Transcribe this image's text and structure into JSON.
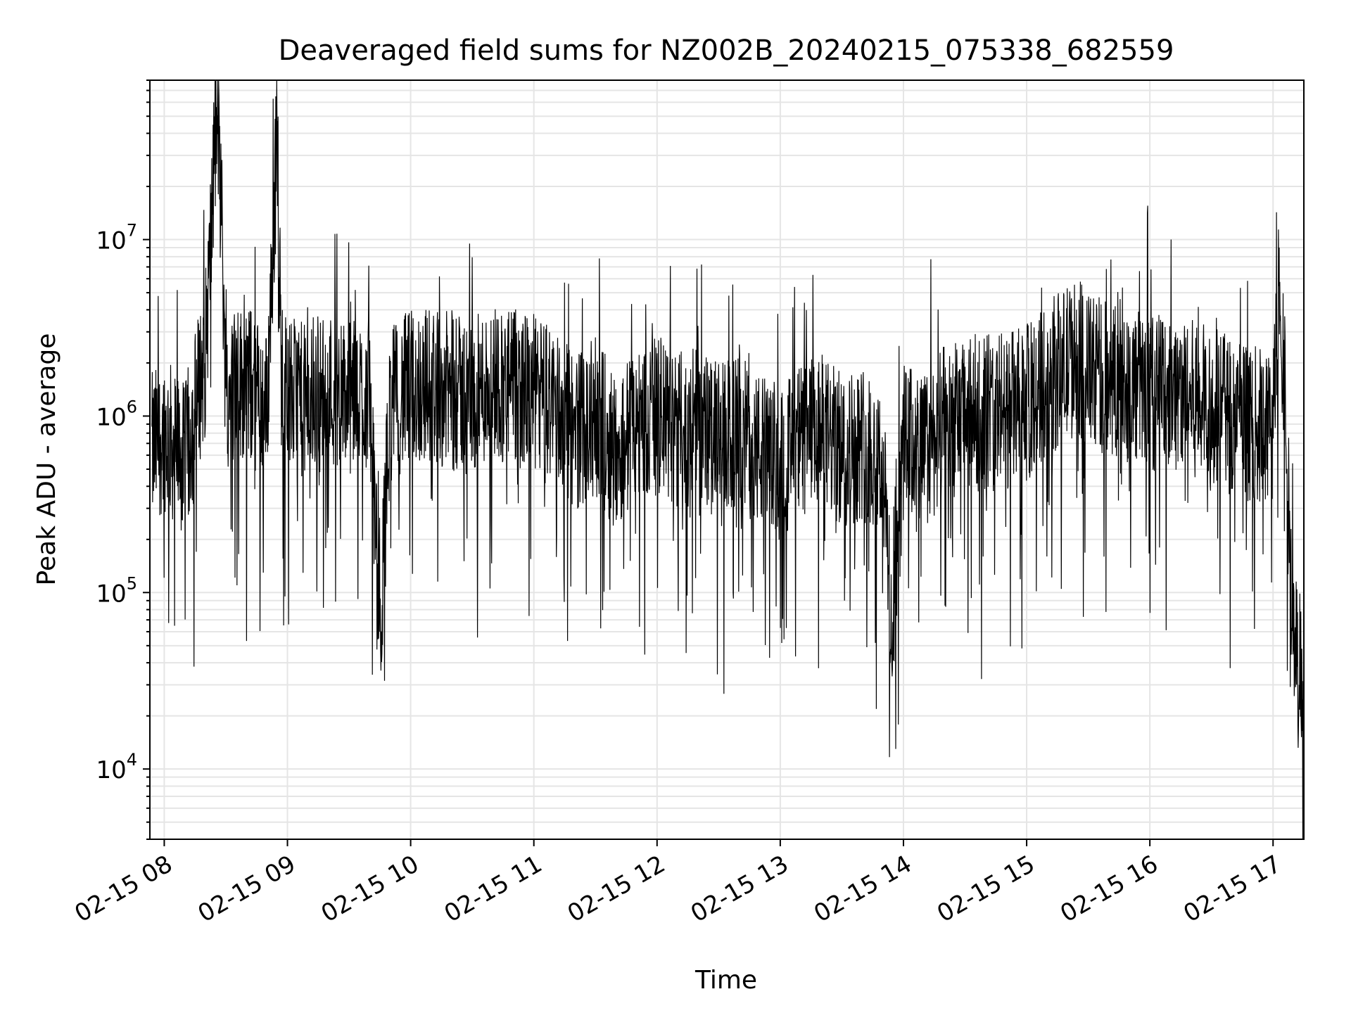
{
  "chart_data": {
    "type": "line",
    "title": "Deaveraged field sums for NZ002B_20240215_075338_682559",
    "xlabel": "Time",
    "ylabel": "Peak ADU - average",
    "yscale": "log",
    "xlim": [
      "02-15 07:53",
      "02-15 17:15"
    ],
    "ylim": [
      4000,
      80000000
    ],
    "xticks": [
      "02-15 08",
      "02-15 09",
      "02-15 10",
      "02-15 11",
      "02-15 12",
      "02-15 13",
      "02-15 14",
      "02-15 15",
      "02-15 16",
      "02-15 17"
    ],
    "yticks": [
      {
        "base": "10",
        "exp": "4"
      },
      {
        "base": "10",
        "exp": "5"
      },
      {
        "base": "10",
        "exp": "6"
      },
      {
        "base": "10",
        "exp": "7"
      }
    ],
    "grid": true,
    "legend": "none",
    "line_color": "#000000",
    "grid_color": "#e5e5e5",
    "series": [
      {
        "x": [
          "07:54",
          "08:00",
          "08:10",
          "08:20",
          "08:25",
          "08:27",
          "08:30",
          "08:40",
          "08:50",
          "08:55",
          "08:57",
          "09:00",
          "09:10",
          "09:20",
          "09:30",
          "09:40",
          "09:45",
          "09:50",
          "10:00",
          "10:10",
          "10:20",
          "10:30",
          "10:40",
          "10:50",
          "11:00",
          "11:10",
          "11:20",
          "11:30",
          "11:40",
          "11:50",
          "12:00",
          "12:10",
          "12:20",
          "12:30",
          "12:40",
          "12:50",
          "13:00",
          "13:10",
          "13:20",
          "13:30",
          "13:40",
          "13:50",
          "13:55",
          "14:00",
          "14:10",
          "14:20",
          "14:30",
          "14:40",
          "14:50",
          "15:00",
          "15:10",
          "15:20",
          "15:25",
          "15:30",
          "15:40",
          "15:50",
          "16:00",
          "16:10",
          "16:20",
          "16:30",
          "16:40",
          "16:50",
          "17:00",
          "17:03",
          "17:06",
          "17:09",
          "17:12",
          "17:15"
        ],
        "y": [
          700000,
          900000,
          600000,
          2500000,
          40000000,
          44000000,
          1500000,
          1800000,
          1200000,
          47000000,
          2000000,
          1500000,
          1300000,
          1600000,
          1400000,
          1500000,
          60000,
          1300000,
          1600000,
          1700000,
          1500000,
          1400000,
          1800000,
          1600000,
          1500000,
          1300000,
          900000,
          1100000,
          700000,
          1000000,
          1100000,
          900000,
          1000000,
          800000,
          900000,
          700000,
          600000,
          800000,
          900000,
          700000,
          800000,
          600000,
          50000,
          800000,
          700000,
          1000000,
          1100000,
          1200000,
          1200000,
          1300000,
          1800000,
          2200000,
          2400000,
          2000000,
          1800000,
          1700000,
          1500000,
          1600000,
          1400000,
          1300000,
          1100000,
          1000000,
          900000,
          9000000,
          1400000,
          90000,
          40000,
          45000
        ]
      }
    ]
  }
}
